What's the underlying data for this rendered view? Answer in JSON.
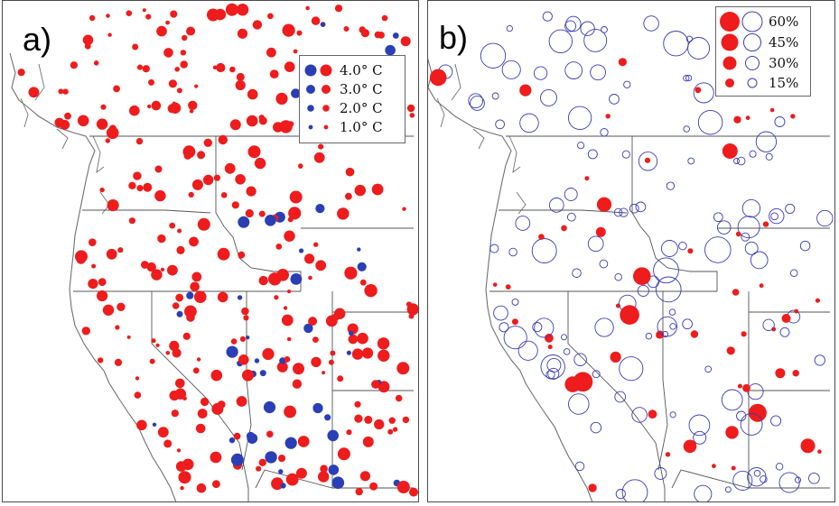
{
  "panels": {
    "a": {
      "label": "a)",
      "legend": [
        {
          "value": "4.0° C"
        },
        {
          "value": "3.0° C"
        },
        {
          "value": "2.0° C"
        },
        {
          "value": "1.0° C"
        }
      ]
    },
    "b": {
      "label": "b)",
      "legend": [
        {
          "value": "60%"
        },
        {
          "value": "45%"
        },
        {
          "value": "30%"
        },
        {
          "value": "15%"
        }
      ]
    }
  },
  "colors": {
    "warming": "#ee1c1c",
    "cooling": "#2a3fb5",
    "increase_fill": "#ee1c1c",
    "decrease_outline": "#3b3bb8",
    "coastline": "#707070",
    "borders": "#555555"
  }
}
